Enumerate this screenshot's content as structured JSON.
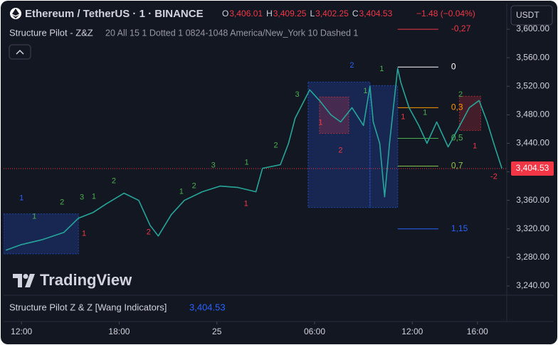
{
  "header": {
    "symbol": "Ethereum / TetherUS · 1 · BINANCE",
    "ohlc": [
      {
        "key": "O",
        "value": "3,406.01"
      },
      {
        "key": "H",
        "value": "3,409.25"
      },
      {
        "key": "L",
        "value": "3,402.25"
      },
      {
        "key": "C",
        "value": "3,404.53"
      }
    ],
    "change": "−1.48 (−0.04%)",
    "indicator_name": "Structure Pilot - Z&Z",
    "indicator_params": "20 All 15 1 Dotted 1 0824-1048 America/New_York 10 Dashed 1",
    "currency": "USDT"
  },
  "bottom_pane": {
    "title": "Structure Pilot Z & Z [Wang Indicators]",
    "value": "3,404.53"
  },
  "logo": "TradingView",
  "chart_data": {
    "type": "line",
    "color": "#26a69a",
    "x": [
      -0.96,
      0,
      1.3,
      2.6,
      3.5,
      4.4,
      5.2,
      6.3,
      7.2,
      7.9,
      8.4,
      9.2,
      10.0,
      11.1,
      12.2,
      13.3,
      14.4,
      14.8,
      15.9,
      16.4,
      16.8,
      17.7,
      18.3,
      19.0,
      19.6,
      20.3,
      21.0,
      21.4,
      21.6,
      22.0,
      22.3,
      22.6,
      23.1,
      23.3,
      23.8,
      24.4,
      24.9,
      25.5,
      26.2,
      26.8,
      27.5,
      28.1,
      28.6,
      29.0,
      29.5
    ],
    "values": [
      3290,
      3298,
      3305,
      3315,
      3335,
      3343,
      3355,
      3370,
      3360,
      3325,
      3310,
      3340,
      3360,
      3372,
      3380,
      3378,
      3372,
      3405,
      3410,
      3440,
      3475,
      3515,
      3500,
      3480,
      3470,
      3490,
      3465,
      3520,
      3470,
      3440,
      3365,
      3440,
      3545,
      3525,
      3490,
      3465,
      3440,
      3470,
      3435,
      3460,
      3490,
      3500,
      3470,
      3440,
      3405
    ],
    "xlim": [
      -1.1,
      29.8
    ],
    "ylim": [
      3229,
      3631
    ],
    "xticks": [
      {
        "value": 0,
        "label": "12:00"
      },
      {
        "value": 6,
        "label": "18:00"
      },
      {
        "value": 12,
        "label": "25"
      },
      {
        "value": 18,
        "label": "06:00"
      },
      {
        "value": 24,
        "label": "12:00"
      },
      {
        "value": 28,
        "label": "16:00"
      }
    ],
    "yticks": [
      {
        "value": 3240,
        "label": "3,240.00"
      },
      {
        "value": 3280,
        "label": "3,280.00"
      },
      {
        "value": 3320,
        "label": "3,320.00"
      },
      {
        "value": 3360,
        "label": "3,360.00"
      },
      {
        "value": 3400,
        "label": "3,400.00"
      },
      {
        "value": 3440,
        "label": "3,440.00"
      },
      {
        "value": 3480,
        "label": "3,480.00"
      },
      {
        "value": 3520,
        "label": "3,520.00"
      },
      {
        "value": 3560,
        "label": "3,560.00"
      },
      {
        "value": 3600,
        "label": "3,600.00"
      }
    ],
    "grid": false,
    "last_price": {
      "value": 3404.53,
      "label": "3,404.53",
      "color": "#f23645"
    },
    "fib_x": [
      23.1,
      25.6
    ],
    "fib_levels": [
      {
        "value": 3600,
        "label": "-0,27",
        "color": "#f23645"
      },
      {
        "value": 3547,
        "label": "0",
        "color": "#ffffff"
      },
      {
        "value": 3490,
        "label": "0,3",
        "color": "#ff9800"
      },
      {
        "value": 3447,
        "label": "0,5",
        "color": "#4caf50"
      },
      {
        "value": 3408,
        "label": "0,7",
        "color": "#8bc34a"
      },
      {
        "value": 3320,
        "label": "1,15",
        "color": "#2962ff"
      }
    ],
    "zones": [
      {
        "x": [
          -1.1,
          3.5
        ],
        "y": [
          3285,
          3341
        ],
        "color": "#2962ff"
      },
      {
        "x": [
          17.6,
          21.4
        ],
        "y": [
          3350,
          3526
        ],
        "color": "#2962ff"
      },
      {
        "x": [
          21.4,
          23.1
        ],
        "y": [
          3350,
          3521
        ],
        "color": "#2962ff"
      },
      {
        "x": [
          18.3,
          20.1
        ],
        "y": [
          3454,
          3505
        ],
        "color": "#f23645"
      },
      {
        "x": [
          26.9,
          28.2
        ],
        "y": [
          3458,
          3506
        ],
        "color": "#f23645"
      }
    ],
    "annotations": [
      {
        "text": "1",
        "x": 0,
        "y": 3363,
        "color": "#2962ff"
      },
      {
        "text": "1",
        "x": 0.79,
        "y": 3337,
        "color": "#4caf50"
      },
      {
        "text": "2",
        "x": 2.49,
        "y": 3357,
        "color": "#4caf50"
      },
      {
        "text": "3",
        "x": 3.71,
        "y": 3364,
        "color": "#4caf50"
      },
      {
        "text": "1",
        "x": 4.45,
        "y": 3365,
        "color": "#4caf50"
      },
      {
        "text": "2",
        "x": 5.67,
        "y": 3387,
        "color": "#4caf50"
      },
      {
        "text": "1",
        "x": 9.82,
        "y": 3372,
        "color": "#4caf50"
      },
      {
        "text": "2",
        "x": 10.6,
        "y": 3380,
        "color": "#4caf50"
      },
      {
        "text": "3",
        "x": 11.78,
        "y": 3409,
        "color": "#4caf50"
      },
      {
        "text": "1",
        "x": 13.83,
        "y": 3413,
        "color": "#4caf50"
      },
      {
        "text": "2",
        "x": 15.62,
        "y": 3437,
        "color": "#4caf50"
      },
      {
        "text": "1",
        "x": 13.79,
        "y": 3355,
        "color": "#f23645"
      },
      {
        "text": "1",
        "x": 3.84,
        "y": 3313,
        "color": "#f23645"
      },
      {
        "text": "2",
        "x": 7.81,
        "y": 3315,
        "color": "#f23645"
      },
      {
        "text": "2",
        "x": 20.29,
        "y": 3549,
        "color": "#2962ff"
      },
      {
        "text": "1",
        "x": 22.12,
        "y": 3544,
        "color": "#4caf50"
      },
      {
        "text": "3",
        "x": 16.93,
        "y": 3508,
        "color": "#4caf50"
      },
      {
        "text": "1",
        "x": 18.37,
        "y": 3469,
        "color": "#f23645"
      },
      {
        "text": "1",
        "x": 21.12,
        "y": 3513,
        "color": "#4caf50"
      },
      {
        "text": "2",
        "x": 19.59,
        "y": 3430,
        "color": "#f23645"
      },
      {
        "text": "1",
        "x": 23.43,
        "y": 3477,
        "color": "#f23645"
      },
      {
        "text": "1",
        "x": 24.78,
        "y": 3483,
        "color": "#4caf50"
      },
      {
        "text": "2",
        "x": 26.96,
        "y": 3508,
        "color": "#4caf50"
      },
      {
        "text": "1",
        "x": 27.84,
        "y": 3436,
        "color": "#f23645"
      },
      {
        "text": "-2",
        "x": 29.01,
        "y": 3393,
        "color": "#f23645"
      }
    ]
  }
}
